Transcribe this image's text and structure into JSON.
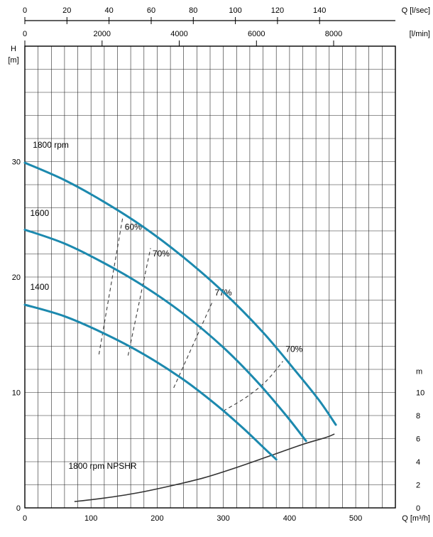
{
  "chart_data": {
    "type": "line",
    "axes": {
      "top_lsec": {
        "unit": "Q [l/sec]",
        "ticks": [
          0,
          20,
          40,
          60,
          80,
          100,
          120,
          140
        ],
        "max": 176
      },
      "top_lmin": {
        "unit": "[l/min]",
        "ticks": [
          0,
          2000,
          4000,
          6000,
          8000
        ],
        "max": 9600
      },
      "bottom": {
        "unit": "Q [m³/h]",
        "ticks": [
          0,
          100,
          200,
          300,
          400,
          500
        ],
        "max": 560
      },
      "left": {
        "title": "H",
        "unit": "[m]",
        "ticks": [
          0,
          10,
          20,
          30
        ],
        "max": 40
      },
      "right": {
        "unit": "m",
        "ticks": [
          0,
          2,
          4,
          6,
          8,
          10
        ]
      }
    },
    "grid": {
      "x_step": 20,
      "y_step": 2,
      "color": "#262626"
    },
    "style": {
      "curve_color": "#1c89ae",
      "npshr_color": "#333333",
      "dash_color": "#3c3c3c"
    },
    "series": [
      {
        "name": "1800 rpm",
        "points": [
          [
            0,
            29.9
          ],
          [
            60,
            28.4
          ],
          [
            120,
            26.5
          ],
          [
            180,
            24.3
          ],
          [
            240,
            21.7
          ],
          [
            300,
            18.7
          ],
          [
            360,
            15.2
          ],
          [
            410,
            11.8
          ],
          [
            445,
            9.3
          ],
          [
            470,
            7.2
          ]
        ],
        "label": {
          "text": "1800 rpm",
          "q": 12,
          "h": 31.2
        }
      },
      {
        "name": "1600",
        "points": [
          [
            0,
            24.1
          ],
          [
            60,
            22.9
          ],
          [
            120,
            21.2
          ],
          [
            180,
            19.2
          ],
          [
            240,
            16.8
          ],
          [
            300,
            13.9
          ],
          [
            350,
            11.0
          ],
          [
            395,
            8.0
          ],
          [
            425,
            5.8
          ]
        ],
        "label": {
          "text": "1600",
          "q": 8,
          "h": 25.3
        }
      },
      {
        "name": "1400",
        "points": [
          [
            0,
            17.6
          ],
          [
            60,
            16.6
          ],
          [
            120,
            15.1
          ],
          [
            180,
            13.3
          ],
          [
            240,
            11.1
          ],
          [
            290,
            8.9
          ],
          [
            330,
            6.9
          ],
          [
            365,
            5.0
          ],
          [
            380,
            4.2
          ]
        ],
        "label": {
          "text": "1400",
          "q": 8,
          "h": 18.9
        }
      }
    ],
    "npshr": {
      "points": [
        [
          75,
          0.55
        ],
        [
          120,
          0.85
        ],
        [
          170,
          1.3
        ],
        [
          220,
          1.9
        ],
        [
          270,
          2.6
        ],
        [
          320,
          3.5
        ],
        [
          370,
          4.5
        ],
        [
          420,
          5.5
        ],
        [
          455,
          6.1
        ],
        [
          468,
          6.4
        ]
      ],
      "label": {
        "text": "1800 rpm NPSHR",
        "q": 66,
        "h": 3.4
      }
    },
    "efficiency_lines": [
      {
        "label": "60%",
        "points": [
          [
            112,
            13.3
          ],
          [
            148,
            25.2
          ]
        ],
        "label_pos": [
          151,
          24.1
        ]
      },
      {
        "label": "70%",
        "points": [
          [
            156,
            13.2
          ],
          [
            190,
            22.5
          ]
        ],
        "label_pos": [
          193,
          21.8
        ]
      },
      {
        "label": "77%",
        "points": [
          [
            225,
            10.4
          ],
          [
            283,
            17.8
          ]
        ],
        "label_pos": [
          287,
          18.4
        ]
      },
      {
        "label": "70%",
        "points": [
          [
            300,
            8.4
          ],
          [
            335,
            9.6
          ],
          [
            365,
            11.0
          ],
          [
            390,
            12.7
          ]
        ],
        "label_pos": [
          394,
          13.5
        ]
      }
    ]
  }
}
